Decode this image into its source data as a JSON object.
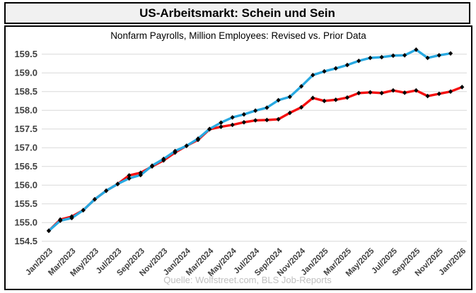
{
  "header": {
    "title": "US-Arbeitsmarkt: Schein und Sein"
  },
  "chart_data": {
    "type": "line",
    "title": "US-Arbeitsmarkt: Schein und Sein",
    "subtitle": "Nonfarm Payrolls, Million Employees: Revised vs. Prior Data",
    "source": "Quelle: Wolfstreet.com, BLS Job-Reports",
    "legend": "none",
    "grid": "horizontal-only",
    "marker_style": "small black diamonds on every data point",
    "ylim": [
      154.5,
      159.5
    ],
    "y_ticks": [
      159.5,
      159.0,
      158.5,
      158.0,
      157.5,
      157.0,
      156.5,
      156.0,
      155.5,
      155.0,
      154.5
    ],
    "x_tick_labels_shown": [
      "Jan/2023",
      "Mar/2023",
      "May/2023",
      "Jul/2023",
      "Sep/2023",
      "Nov/2023",
      "Jan/2024",
      "Mar/2024",
      "May/2024",
      "Jul/2024",
      "Sep/2024",
      "Nov/2024",
      "Jan/2025",
      "Mar/2025",
      "May/2025",
      "Jul/2025",
      "Sep/2025",
      "Nov/2025",
      "Jan/2026"
    ],
    "x": [
      "Jan/2023",
      "Feb/2023",
      "Mar/2023",
      "Apr/2023",
      "May/2023",
      "Jun/2023",
      "Jul/2023",
      "Aug/2023",
      "Sep/2023",
      "Oct/2023",
      "Nov/2023",
      "Dec/2023",
      "Jan/2024",
      "Feb/2024",
      "Mar/2024",
      "Apr/2024",
      "May/2024",
      "Jun/2024",
      "Jul/2024",
      "Aug/2024",
      "Sep/2024",
      "Oct/2024",
      "Nov/2024",
      "Dec/2024",
      "Jan/2025",
      "Feb/2025",
      "Mar/2025",
      "Apr/2025",
      "May/2025",
      "Jun/2025",
      "Jul/2025",
      "Aug/2025",
      "Sep/2025",
      "Oct/2025",
      "Nov/2025",
      "Dec/2025",
      "Jan/2026"
    ],
    "series": [
      {
        "name": "Revised (red line, continues through Jan/2026)",
        "color": "#f50f0f",
        "values": [
          154.78,
          155.08,
          155.16,
          155.33,
          155.62,
          155.85,
          156.03,
          156.26,
          156.33,
          156.5,
          156.66,
          156.87,
          157.05,
          157.21,
          157.49,
          157.56,
          157.61,
          157.68,
          157.73,
          157.74,
          157.76,
          157.93,
          158.08,
          158.33,
          158.25,
          158.28,
          158.34,
          158.46,
          158.48,
          158.46,
          158.53,
          158.47,
          158.53,
          158.38,
          158.44,
          158.5,
          158.62
        ]
      },
      {
        "name": "Prior Data (blue line, ends Dec/2025)",
        "color": "#29a9e1",
        "values": [
          154.78,
          155.05,
          155.12,
          155.33,
          155.62,
          155.85,
          156.03,
          156.18,
          156.27,
          156.52,
          156.7,
          156.91,
          157.05,
          157.24,
          157.5,
          157.67,
          157.81,
          157.89,
          157.99,
          158.07,
          158.27,
          158.36,
          158.64,
          158.94,
          159.04,
          159.12,
          159.21,
          159.32,
          159.4,
          159.42,
          159.46,
          159.47,
          159.62,
          159.4,
          159.47,
          159.52,
          null
        ]
      }
    ],
    "style_colors": {
      "header_background": "#f1f1f1",
      "border": "#000000",
      "gridline": "#d9d9d9",
      "tick_label": "#404040",
      "marker": "#000000",
      "source_text": "#c0c0c0"
    }
  }
}
